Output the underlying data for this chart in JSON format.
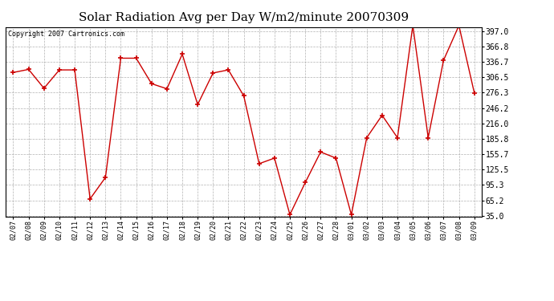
{
  "title": "Solar Radiation Avg per Day W/m2/minute 20070309",
  "copyright": "Copyright 2007 Cartronics.com",
  "dates": [
    "02/07",
    "02/08",
    "02/09",
    "02/10",
    "02/11",
    "02/12",
    "02/13",
    "02/14",
    "02/15",
    "02/16",
    "02/17",
    "02/18",
    "02/19",
    "02/20",
    "02/21",
    "02/22",
    "02/23",
    "02/24",
    "02/25",
    "02/26",
    "02/27",
    "02/28",
    "03/01",
    "03/02",
    "03/03",
    "03/04",
    "03/05",
    "03/06",
    "03/07",
    "03/08",
    "03/09"
  ],
  "values": [
    316.0,
    322.0,
    285.0,
    321.0,
    321.0,
    68.0,
    110.0,
    344.0,
    344.0,
    294.0,
    284.0,
    352.0,
    253.0,
    315.0,
    321.0,
    270.0,
    137.0,
    148.0,
    37.0,
    100.0,
    160.0,
    148.0,
    37.0,
    188.0,
    232.0,
    188.0,
    408.0,
    188.0,
    340.0,
    408.0,
    276.0
  ],
  "line_color": "#cc0000",
  "marker": "+",
  "bg_color": "#ffffff",
  "plot_bg_color": "#ffffff",
  "grid_color": "#aaaaaa",
  "title_fontsize": 11,
  "copyright_fontsize": 6,
  "tick_fontsize": 7,
  "xtick_fontsize": 6,
  "yticks": [
    35.0,
    65.2,
    95.3,
    125.5,
    155.7,
    185.8,
    216.0,
    246.2,
    276.3,
    306.5,
    336.7,
    366.8,
    397.0
  ],
  "ymin": 35.0,
  "ymax": 397.0
}
